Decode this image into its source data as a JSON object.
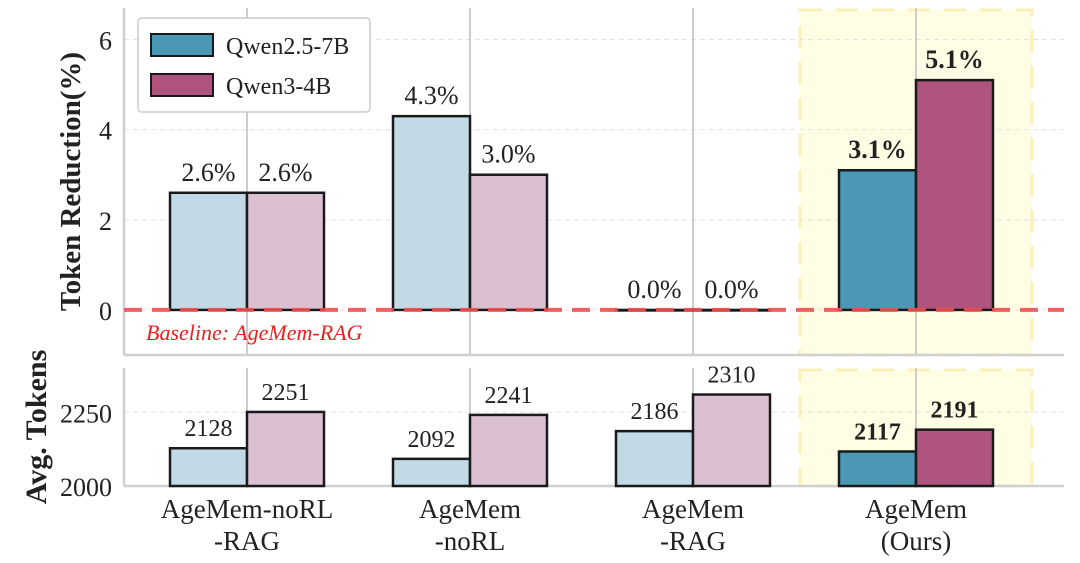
{
  "colors": {
    "qwen25": "#4b98b4",
    "qwen3": "#ae547e",
    "qwen25_light": "#c2dae6",
    "qwen3_light": "#dbc0d2",
    "highlight": "#fffde3",
    "baseline": "#f05050"
  },
  "chart_data": [
    {
      "type": "bar",
      "title": "",
      "xlabel": "",
      "ylabel": "Token Reduction(%)",
      "ylim": [
        -1,
        6.7
      ],
      "yticks": [
        0,
        2,
        4,
        6
      ],
      "grid": true,
      "legend_position": "top-left",
      "categories": [
        "AgeMem-noRL\n-RAG",
        "AgeMem\n-noRL",
        "AgeMem\n-RAG",
        "AgeMem\n(Ours)"
      ],
      "series": [
        {
          "name": "Qwen2.5-7B",
          "values": [
            2.6,
            4.3,
            0.0,
            3.1
          ],
          "labels": [
            "2.6%",
            "4.3%",
            "0.0%",
            "3.1%"
          ]
        },
        {
          "name": "Qwen3-4B",
          "values": [
            2.6,
            3.0,
            0.0,
            5.1
          ],
          "labels": [
            "2.6%",
            "3.0%",
            "0.0%",
            "5.1%"
          ]
        }
      ],
      "baseline": {
        "value": 0,
        "label": "Baseline: AgeMem-RAG"
      },
      "highlighted_category": "AgeMem\n(Ours)"
    },
    {
      "type": "bar",
      "title": "",
      "xlabel": "",
      "ylabel": "Avg. Tokens",
      "ylim": [
        2000,
        2400
      ],
      "yticks": [
        2000,
        2250
      ],
      "grid": true,
      "categories": [
        "AgeMem-noRL\n-RAG",
        "AgeMem\n-noRL",
        "AgeMem\n-RAG",
        "AgeMem\n(Ours)"
      ],
      "x_tick_labels": [
        [
          "AgeMem-noRL",
          "-RAG"
        ],
        [
          "AgeMem",
          "-noRL"
        ],
        [
          "AgeMem",
          "-RAG"
        ],
        [
          "AgeMem",
          "(Ours)"
        ]
      ],
      "series": [
        {
          "name": "Qwen2.5-7B",
          "values": [
            2128,
            2092,
            2186,
            2117
          ],
          "labels": [
            "2128",
            "2092",
            "2186",
            "2117"
          ]
        },
        {
          "name": "Qwen3-4B",
          "values": [
            2251,
            2241,
            2310,
            2191
          ],
          "labels": [
            "2251",
            "2241",
            "2310",
            "2191"
          ]
        }
      ]
    }
  ]
}
